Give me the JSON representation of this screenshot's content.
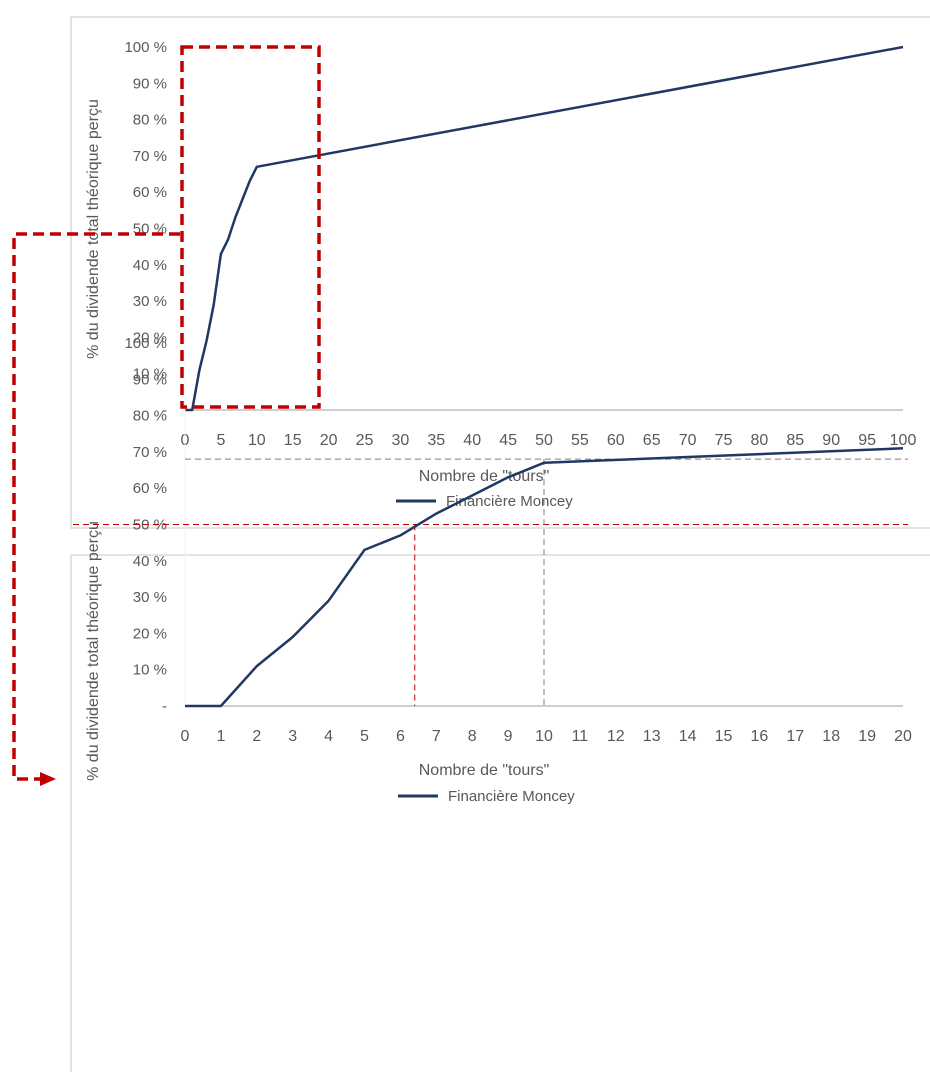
{
  "colors": {
    "line": "#1f3864",
    "highlight": "#c00000",
    "guide_grey": "#7f7f7f",
    "axis": "#bfbfbf",
    "text": "#595959"
  },
  "chart_data": [
    {
      "type": "line",
      "title": "",
      "xlabel": "Nombre de \"tours\"",
      "ylabel": "% du dividende total théorique perçu",
      "ylim": [
        0,
        100
      ],
      "xlim": [
        0,
        100
      ],
      "ytick_labels": [
        "-",
        "10 %",
        "20 %",
        "30 %",
        "40 %",
        "50 %",
        "60 %",
        "70 %",
        "80 %",
        "90 %",
        "100 %"
      ],
      "xtick_labels": [
        "0",
        "5",
        "10",
        "15",
        "20",
        "25",
        "30",
        "35",
        "40",
        "45",
        "50",
        "55",
        "60",
        "65",
        "70",
        "75",
        "80",
        "85",
        "90",
        "95",
        "100"
      ],
      "legend": "bottom-center",
      "series": [
        {
          "name": "Financière Moncey",
          "x": [
            0,
            1,
            2,
            3,
            4,
            5,
            6,
            7,
            8,
            9,
            10,
            100
          ],
          "y": [
            0,
            0,
            11,
            19,
            29,
            43,
            47,
            53,
            58,
            63,
            67,
            100
          ]
        }
      ],
      "annotation": "zoom box over x 0-18"
    },
    {
      "type": "line",
      "title": "",
      "xlabel": "Nombre de \"tours\"",
      "ylabel": "% du dividende total théorique perçu",
      "ylim": [
        0,
        100
      ],
      "xlim": [
        0,
        20
      ],
      "ytick_labels": [
        "-",
        "10 %",
        "20 %",
        "30 %",
        "40 %",
        "50 %",
        "60 %",
        "70 %",
        "80 %",
        "90 %",
        "100 %"
      ],
      "xtick_labels": [
        "0",
        "1",
        "2",
        "3",
        "4",
        "5",
        "6",
        "7",
        "8",
        "9",
        "10",
        "11",
        "12",
        "13",
        "14",
        "15",
        "16",
        "17",
        "18",
        "19",
        "20"
      ],
      "legend": "bottom-center",
      "series": [
        {
          "name": "Financière Moncey",
          "x": [
            0,
            1,
            2,
            3,
            4,
            5,
            6,
            7,
            8,
            9,
            10,
            20
          ],
          "y": [
            0,
            0,
            11,
            19,
            29,
            43,
            47,
            53,
            58,
            63,
            67,
            71
          ]
        }
      ],
      "reference_lines": [
        {
          "kind": "horizontal",
          "y": 50,
          "color": "red"
        },
        {
          "kind": "vertical",
          "x": 6.4,
          "color": "red"
        },
        {
          "kind": "horizontal",
          "y": 68,
          "color": "grey"
        },
        {
          "kind": "vertical",
          "x": 10,
          "color": "grey"
        }
      ]
    }
  ]
}
